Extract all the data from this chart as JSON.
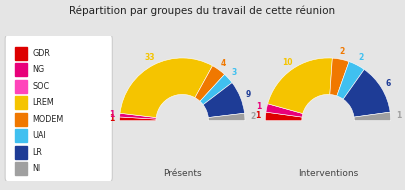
{
  "title": "Répartition par groupes du travail de cette réunion",
  "background_color": "#e5e5e5",
  "legend_items": [
    {
      "label": "GDR",
      "color": "#dd0000"
    },
    {
      "label": "NG",
      "color": "#e8007a"
    },
    {
      "label": "SOC",
      "color": "#ff44bb"
    },
    {
      "label": "LREM",
      "color": "#f5c400"
    },
    {
      "label": "MODEM",
      "color": "#f07800"
    },
    {
      "label": "UAI",
      "color": "#40c0f0"
    },
    {
      "label": "LR",
      "color": "#1e3c96"
    },
    {
      "label": "NI",
      "color": "#a0a0a0"
    }
  ],
  "presents": {
    "label": "Présents",
    "values": [
      1,
      1,
      0,
      33,
      4,
      3,
      9,
      2
    ],
    "colors": [
      "#dd0000",
      "#e8007a",
      "#ff44bb",
      "#f5c400",
      "#f07800",
      "#40c0f0",
      "#1e3c96",
      "#a0a0a0"
    ]
  },
  "interventions": {
    "label": "Interventions",
    "values": [
      1,
      1,
      0,
      10,
      2,
      2,
      6,
      1
    ],
    "colors": [
      "#dd0000",
      "#e8007a",
      "#ff44bb",
      "#f5c400",
      "#f07800",
      "#40c0f0",
      "#1e3c96",
      "#a0a0a0"
    ]
  },
  "ann_colors": {
    "GDR": "#dd0000",
    "NG": "#e8007a",
    "SOC": "#ff44bb",
    "LREM": "#f5c400",
    "MODEM": "#f07800",
    "UAI": "#40c0f0",
    "LR": "#1e3c96",
    "NI": "#a0a0a0"
  }
}
